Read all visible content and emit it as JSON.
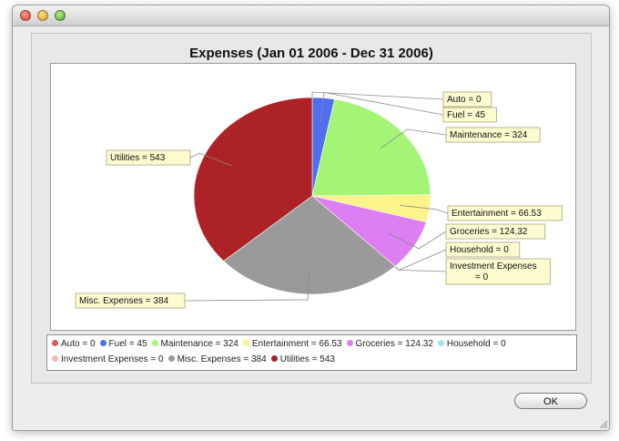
{
  "chart_data": {
    "type": "pie",
    "title": "Expenses (Jan 01 2006 - Dec 31 2006)",
    "slices": [
      {
        "name": "Auto",
        "value": 0,
        "color": "#e05a5a",
        "label": "Auto = 0",
        "legend": "Auto = 0"
      },
      {
        "name": "Fuel",
        "value": 45,
        "color": "#4f6ef0",
        "label": "Fuel = 45",
        "legend": "Fuel = 45"
      },
      {
        "name": "Maintenance",
        "value": 324,
        "color": "#a4f576",
        "label": "Maintenance = 324",
        "legend": "Maintenance = 324"
      },
      {
        "name": "Entertainment",
        "value": 66.53,
        "color": "#fbf48a",
        "label": "Entertainment = 66.53",
        "legend": "Entertainment = 66.53"
      },
      {
        "name": "Groceries",
        "value": 124.32,
        "color": "#dd7ef2",
        "label": "Groceries = 124.32",
        "legend": "Groceries = 124.32"
      },
      {
        "name": "Household",
        "value": 0,
        "color": "#9ee6ee",
        "label": "Household = 0",
        "legend": "Household = 0"
      },
      {
        "name": "Investment Expenses",
        "value": 0,
        "color": "#f4b8b8",
        "label": "Investment Expenses = 0",
        "legend": "Investment Expenses = 0"
      },
      {
        "name": "Misc. Expenses",
        "value": 384,
        "color": "#9a9a9a",
        "label": "Misc. Expenses = 384",
        "legend": "Misc. Expenses = 384"
      },
      {
        "name": "Utilities",
        "value": 543,
        "color": "#ad2226",
        "label": "Utilities = 543",
        "legend": "Utilities = 543"
      }
    ],
    "legend_position": "bottom"
  },
  "buttons": {
    "ok_label": "OK"
  },
  "icons": {
    "close": "close-icon",
    "minimize": "minimize-icon",
    "zoom": "zoom-icon",
    "resize": "resize-grip-icon"
  }
}
